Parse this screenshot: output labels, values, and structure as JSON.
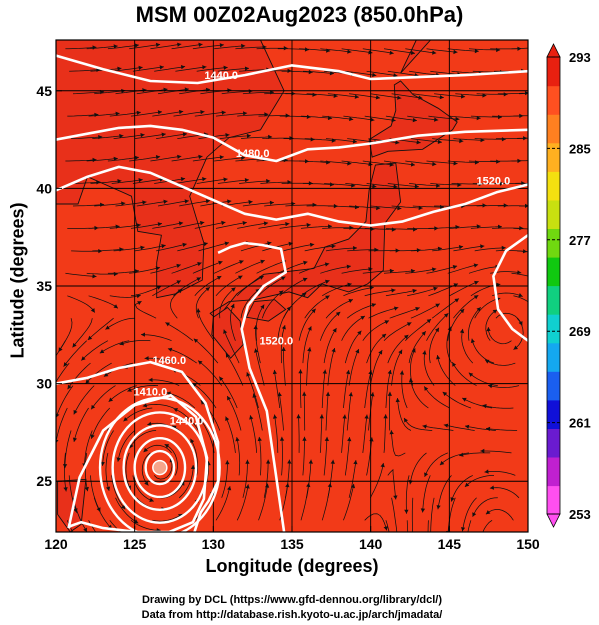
{
  "title": "MSM 00Z02Aug2023 (850.0hPa)",
  "credits": {
    "line1": "Drawing by DCL (https://www.gfd-dennou.org/library/dcl/)",
    "line2": "Data from http://database.rish.kyoto-u.ac.jp/arch/jmadata/"
  },
  "chart_data": {
    "type": "heatmap",
    "title": "MSM 00Z02Aug2023 (850.0hPa)",
    "xlabel": "Longitude (degrees)",
    "ylabel": "Latitude  (degrees)",
    "xlim": [
      120,
      150
    ],
    "ylim": [
      22.4,
      47.6
    ],
    "x_ticks": [
      120,
      125,
      130,
      135,
      140,
      145,
      150
    ],
    "y_ticks": [
      25,
      30,
      35,
      40,
      45
    ],
    "grid": true,
    "colorbar": {
      "min": 253,
      "max": 293,
      "ticks": [
        253,
        261,
        269,
        277,
        285,
        293
      ],
      "colors": [
        "#ff4ff0",
        "#c020d0",
        "#6a1bd0",
        "#1010d8",
        "#1a5ff0",
        "#14a8f0",
        "#10d0d0",
        "#10d080",
        "#10c810",
        "#70d810",
        "#c8e010",
        "#f4e010",
        "#ffb020",
        "#ff8020",
        "#ff5020",
        "#e82010"
      ]
    },
    "contour_labels": [
      {
        "text": "1440.0",
        "lon": 130.5,
        "lat": 45.6
      },
      {
        "text": "1480.0",
        "lon": 132.5,
        "lat": 41.6
      },
      {
        "text": "1520.0",
        "lon": 147.8,
        "lat": 40.2
      },
      {
        "text": "1520.0",
        "lon": 134.0,
        "lat": 32.0
      },
      {
        "text": "1460.0",
        "lon": 127.2,
        "lat": 31.0
      },
      {
        "text": "1410.0",
        "lon": 126.0,
        "lat": 29.4
      },
      {
        "text": "1440.0",
        "lon": 128.3,
        "lat": 27.9
      }
    ],
    "contours": [
      {
        "level": "1440.0",
        "lon": [
          120,
          123,
          126,
          129,
          132,
          135,
          138,
          140,
          143,
          146,
          150
        ],
        "lat": [
          46.8,
          46.1,
          45.5,
          45.4,
          45.8,
          46.3,
          46.0,
          45.6,
          45.7,
          45.8,
          46.0
        ]
      },
      {
        "level": "1480.0",
        "lon": [
          120,
          122,
          124,
          126,
          128,
          130,
          132,
          134,
          136,
          138,
          140,
          143,
          146,
          150
        ],
        "lat": [
          42.5,
          42.8,
          43.1,
          43.2,
          43.0,
          42.6,
          41.7,
          41.4,
          42.0,
          42.1,
          42.3,
          42.7,
          42.9,
          43.0
        ]
      },
      {
        "level": "1520.0",
        "lon": [
          120,
          122,
          124,
          126,
          128,
          130,
          132,
          134,
          136,
          138,
          140,
          142,
          144,
          146,
          148,
          150
        ],
        "lat": [
          39.9,
          40.6,
          41.1,
          40.8,
          40.1,
          39.4,
          38.7,
          38.4,
          38.7,
          38.3,
          38.1,
          38.3,
          38.8,
          39.2,
          39.8,
          40.2
        ]
      },
      {
        "level": "1520.0",
        "lon": [
          130.3,
          131.1,
          132.0,
          133.1,
          134.3,
          134.6,
          133.2,
          132.2,
          131.8,
          132.3,
          133.4,
          134.5
        ],
        "lat": [
          36.7,
          37.0,
          37.2,
          37.1,
          36.9,
          35.7,
          35.0,
          34.0,
          32.8,
          30.8,
          28.6,
          22.4
        ]
      },
      {
        "level": "1460.0",
        "lon": [
          120,
          122,
          124,
          126,
          128,
          129.5,
          130.3,
          130.3,
          129.7,
          129.2,
          128.8
        ],
        "lat": [
          30.0,
          30.3,
          30.8,
          31.1,
          30.6,
          29.0,
          27.0,
          25.0,
          24.0,
          23.4,
          22.4
        ]
      },
      {
        "level": "1410.0",
        "lon": [
          120.8,
          121.5,
          123.0,
          125.0,
          127.3,
          128.9,
          129.6,
          129.4,
          128.7,
          127.2,
          125.2,
          123.0,
          121.6,
          120.9,
          120.8
        ],
        "lat": [
          22.6,
          25.2,
          27.6,
          28.9,
          29.4,
          28.3,
          26.2,
          24.1,
          22.9,
          22.4,
          22.4,
          22.6,
          22.9,
          22.7,
          22.6
        ]
      }
    ],
    "cyclone_center": {
      "lon": 126.6,
      "lat": 25.7
    },
    "high_contour": {
      "level": "1520.0",
      "lon": [
        150.0,
        148.6,
        147.8,
        148.1,
        149.0,
        150.0
      ],
      "lat": [
        37.6,
        36.8,
        35.5,
        33.8,
        32.8,
        32.2
      ]
    }
  }
}
